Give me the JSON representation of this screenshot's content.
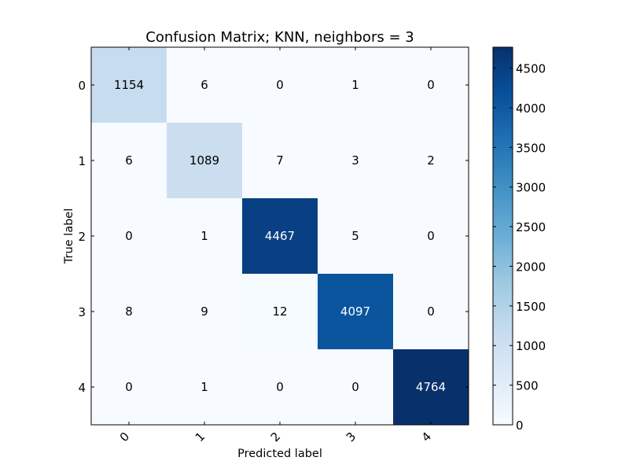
{
  "chart_data": {
    "type": "heatmap",
    "title": "Confusion Matrix; KNN, neighbors = 3",
    "xlabel": "Predicted label",
    "ylabel": "True label",
    "x_categories": [
      "0",
      "1",
      "2",
      "3",
      "4"
    ],
    "y_categories": [
      "0",
      "1",
      "2",
      "3",
      "4"
    ],
    "values": [
      [
        1154,
        6,
        0,
        1,
        0
      ],
      [
        6,
        1089,
        7,
        3,
        2
      ],
      [
        0,
        1,
        4467,
        5,
        0
      ],
      [
        8,
        9,
        12,
        4097,
        0
      ],
      [
        0,
        1,
        0,
        0,
        4764
      ]
    ],
    "colormap": "Blues",
    "color_low": "#f7fbff",
    "color_high": "#08306b",
    "vmin": 0,
    "vmax": 4764,
    "colorbar": {
      "ticks": [
        0,
        500,
        1000,
        1500,
        2000,
        2500,
        3000,
        3500,
        4000,
        4500
      ],
      "placement": "right"
    },
    "x_tick_rotation_deg": 45,
    "grid": false
  }
}
